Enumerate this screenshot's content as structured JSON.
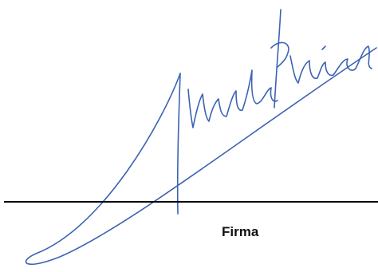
{
  "signature_block": {
    "label": "Firma"
  }
}
